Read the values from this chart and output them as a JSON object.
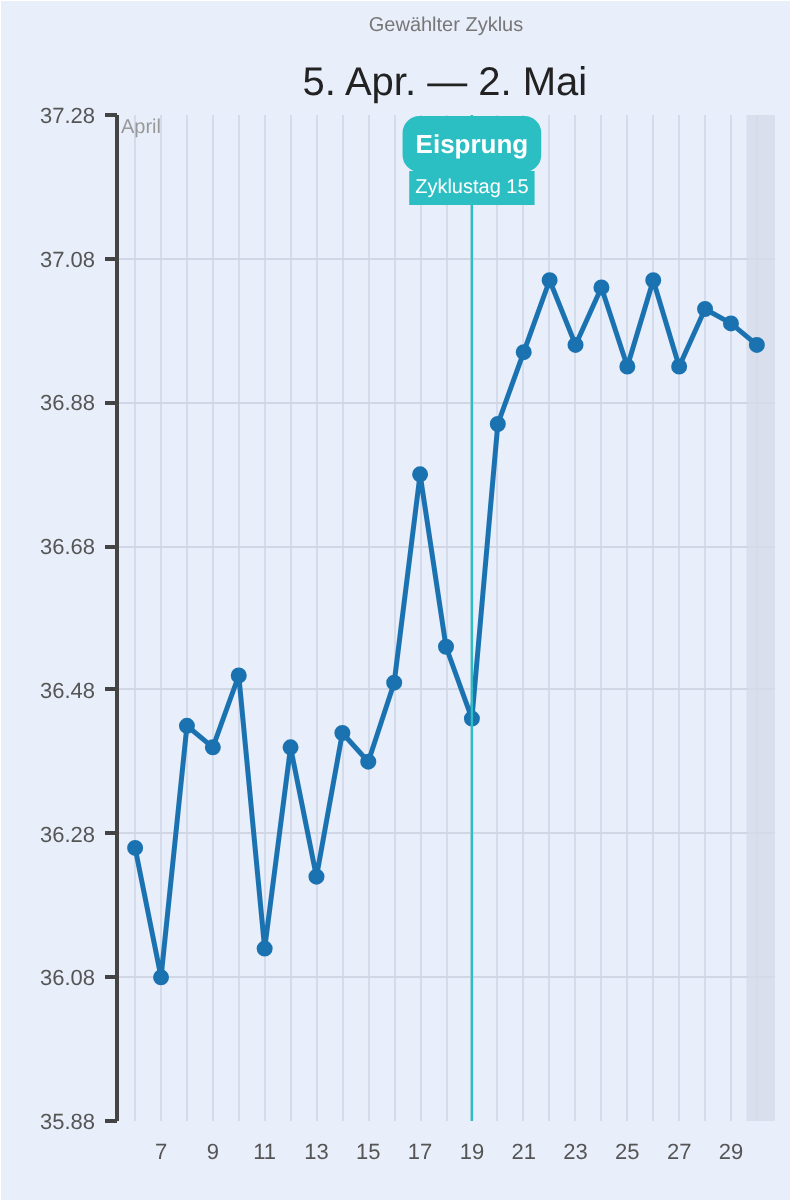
{
  "chart_data": {
    "type": "line",
    "subtitle": "Gewählter Zyklus",
    "title": "5. Apr. — 2. Mai",
    "x": [
      6,
      7,
      8,
      9,
      10,
      11,
      12,
      13,
      14,
      15,
      16,
      17,
      18,
      19,
      20,
      21,
      22,
      23,
      24,
      25,
      26,
      27,
      28,
      29,
      30
    ],
    "series": [
      {
        "color": "#1b72b0",
        "values": [
          36.26,
          36.08,
          36.43,
          36.4,
          36.5,
          36.12,
          36.4,
          36.22,
          36.42,
          36.38,
          36.49,
          36.78,
          36.54,
          36.44,
          36.85,
          36.95,
          37.05,
          36.96,
          37.04,
          36.93,
          37.05,
          36.93,
          37.01,
          36.99,
          36.96
        ]
      }
    ],
    "xlim": [
      5.3,
      30.7
    ],
    "xticks": [
      {
        "value": 6,
        "label": null
      },
      7,
      {
        "value": 8,
        "label": null
      },
      9,
      {
        "value": 10,
        "label": null
      },
      11,
      {
        "value": 12,
        "label": null
      },
      13,
      {
        "value": 14,
        "label": null
      },
      15,
      {
        "value": 16,
        "label": null
      },
      17,
      {
        "value": 18,
        "label": null
      },
      19,
      {
        "value": 20,
        "label": null
      },
      21,
      {
        "value": 22,
        "label": null
      },
      23,
      {
        "value": 24,
        "label": null
      },
      25,
      {
        "value": 26,
        "label": null
      },
      27,
      {
        "value": 28,
        "label": null
      },
      29,
      {
        "value": 30,
        "label": null
      }
    ],
    "ylim": [
      35.88,
      37.28
    ],
    "yticks": [
      35.88,
      36.08,
      36.28,
      36.48,
      36.68,
      36.88,
      37.08,
      37.28
    ],
    "grid": true,
    "marker": "circle",
    "line_style": "solid",
    "ref_lines": [
      {
        "axis": "x",
        "value": 19,
        "label": "Eisprung",
        "color": "#2bbfc4"
      }
    ],
    "bands": [
      {
        "axis": "x",
        "from": 29.6,
        "to": 30.7,
        "color": "#d5dbe8"
      }
    ],
    "annotations": [
      "Zyklustag 15",
      "April"
    ]
  }
}
